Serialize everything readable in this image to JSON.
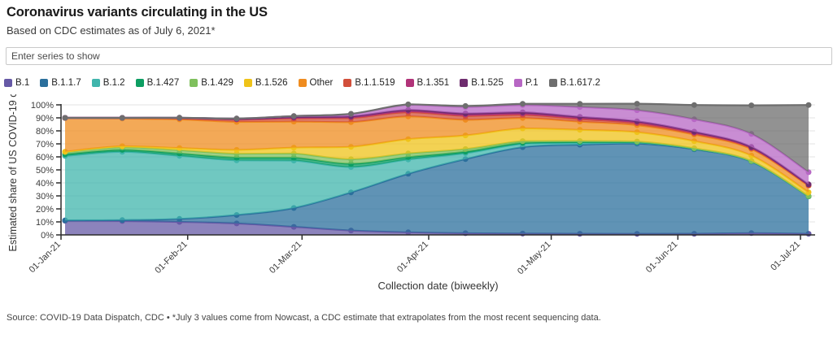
{
  "header": {
    "title": "Coronavirus variants circulating in the US",
    "subtitle": "Based on CDC estimates as of July 6, 2021*"
  },
  "controls": {
    "series_input_placeholder": "Enter series to show"
  },
  "chart_data": {
    "type": "area",
    "stacked": true,
    "y_unit": "%",
    "xlabel": "Collection date (biweekly)",
    "ylabel": "Estimated share of US COVID-19 ca",
    "ylim": [
      0,
      100
    ],
    "y_tick_step": 10,
    "grid": "horizontal",
    "legend_position": "top",
    "x": [
      "02-Jan-21",
      "16-Jan-21",
      "30-Jan-21",
      "13-Feb-21",
      "27-Feb-21",
      "13-Mar-21",
      "27-Mar-21",
      "10-Apr-21",
      "24-Apr-21",
      "08-May-21",
      "22-May-21",
      "05-Jun-21",
      "19-Jun-21",
      "03-Jul-21"
    ],
    "x_tick_labels": [
      "01-Jan-21",
      "01-Feb-21",
      "01-Mar-21",
      "01-Apr-21",
      "01-May-21",
      "01-Jun-21",
      "01-Jul-21"
    ],
    "series": [
      {
        "name": "B.1",
        "color": "#6659a6",
        "values": [
          10.9,
          10.7,
          10.0,
          8.8,
          6.2,
          3.4,
          2.0,
          1.3,
          1.0,
          0.9,
          0.8,
          0.9,
          1.4,
          0.9
        ]
      },
      {
        "name": "B.1.1.7",
        "color": "#2b6f9c",
        "values": [
          0.3,
          0.7,
          2.3,
          6.5,
          14.5,
          29.3,
          45.0,
          57.0,
          66.5,
          68.5,
          69.5,
          65.0,
          55.0,
          28.7
        ]
      },
      {
        "name": "B.1.2",
        "color": "#40b5ac",
        "values": [
          49.5,
          52.5,
          48.5,
          42.0,
          36.5,
          19.5,
          11.0,
          4.5,
          2.5,
          1.5,
          0.8,
          0.4,
          0.2,
          0.1
        ]
      },
      {
        "name": "B.1.427",
        "color": "#0d9e62",
        "values": [
          1.3,
          1.5,
          1.8,
          2.1,
          2.2,
          2.5,
          1.8,
          1.2,
          0.8,
          0.5,
          0.3,
          0.1,
          0.1,
          0.0
        ]
      },
      {
        "name": "B.1.429",
        "color": "#7fc05d",
        "values": [
          1.7,
          2.0,
          2.5,
          3.0,
          3.2,
          3.5,
          2.8,
          2.0,
          1.3,
          0.8,
          0.4,
          0.2,
          0.1,
          0.1
        ]
      },
      {
        "name": "B.1.526",
        "color": "#efc319",
        "values": [
          0.3,
          0.8,
          1.7,
          3.0,
          4.5,
          9.5,
          11.0,
          10.5,
          9.8,
          8.6,
          7.2,
          5.5,
          4.2,
          3.0
        ]
      },
      {
        "name": "Other",
        "color": "#ef8c1f",
        "values": [
          25.8,
          21.3,
          22.0,
          21.5,
          20.0,
          19.0,
          17.5,
          12.0,
          8.0,
          6.3,
          5.4,
          5.0,
          5.0,
          5.0
        ]
      },
      {
        "name": "B.1.1.519",
        "color": "#d24f3b",
        "values": [
          0.2,
          0.5,
          1.0,
          1.8,
          2.6,
          3.2,
          3.3,
          3.0,
          2.5,
          2.0,
          1.5,
          1.0,
          0.7,
          0.4
        ]
      },
      {
        "name": "B.1.351",
        "color": "#b13379",
        "values": [
          0.0,
          0.0,
          0.1,
          0.3,
          0.5,
          0.7,
          0.9,
          1.0,
          1.0,
          0.9,
          0.8,
          0.7,
          0.5,
          0.4
        ]
      },
      {
        "name": "B.1.525",
        "color": "#6e2c6e",
        "values": [
          0.0,
          0.0,
          0.1,
          0.2,
          0.4,
          0.6,
          0.8,
          0.9,
          0.9,
          0.8,
          0.7,
          0.6,
          0.4,
          0.3
        ]
      },
      {
        "name": "P.1",
        "color": "#b767c4",
        "values": [
          0.0,
          0.0,
          0.1,
          0.3,
          0.8,
          1.8,
          4.0,
          5.0,
          5.5,
          7.5,
          8.5,
          9.5,
          10.0,
          9.3
        ]
      },
      {
        "name": "B.1.617.2",
        "color": "#6e6e6e",
        "values": [
          0.0,
          0.0,
          0.0,
          0.0,
          0.0,
          0.1,
          0.3,
          0.7,
          1.0,
          2.5,
          5.0,
          11.0,
          22.0,
          51.7
        ]
      }
    ]
  },
  "footer": {
    "source": "Source: COVID-19 Data Dispatch, CDC • *July 3 values come from Nowcast, a CDC estimate that extrapolates from the most recent sequencing data."
  }
}
